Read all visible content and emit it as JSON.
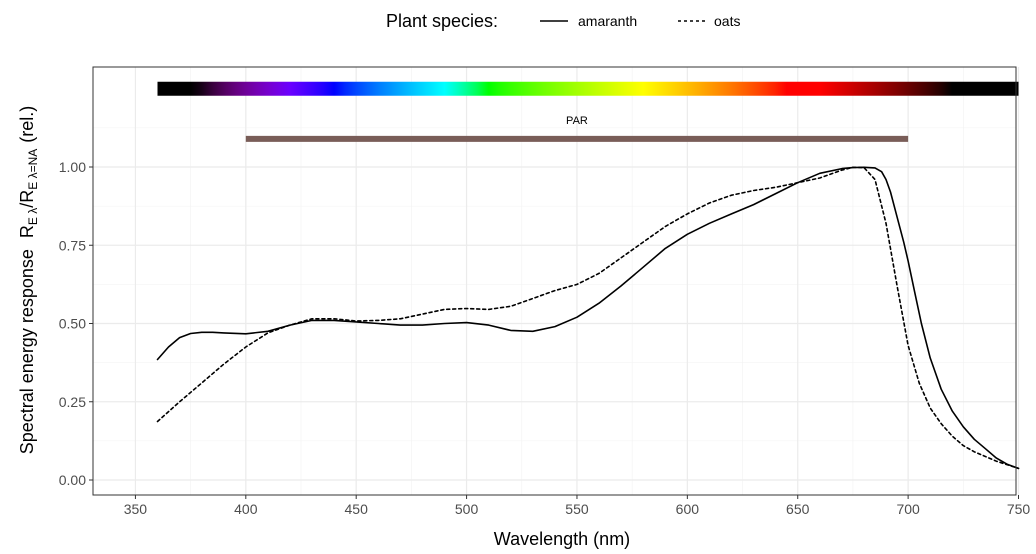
{
  "chart_data": {
    "type": "line",
    "xlabel": "Wavelength (nm)",
    "ylabel_prefix": "Spectral energy response",
    "ylabel_symbol": "R",
    "ylabel_sub1": "E λ",
    "ylabel_slash": "/",
    "ylabel_sub2": "E λ=NA",
    "ylabel_suffix": "(rel.)",
    "xlim": [
      360,
      750
    ],
    "ylim": [
      0,
      1.25
    ],
    "x_ticks": [
      350,
      400,
      450,
      500,
      550,
      600,
      650,
      700,
      750
    ],
    "y_ticks": [
      0,
      0.25,
      0.5,
      0.75,
      1.0
    ],
    "y_tick_labels": [
      "0.00",
      "0.25",
      "0.50",
      "0.75",
      "1.00"
    ],
    "grid": true,
    "legend": {
      "position": "top",
      "title": "Plant species:",
      "entries": [
        {
          "name": "amaranth",
          "linetype": "solid"
        },
        {
          "name": "oats",
          "linetype": "dashed"
        }
      ]
    },
    "annotations": {
      "spectrum_bar": {
        "from": 360,
        "to": 750,
        "y": 1.25
      },
      "par_bar": {
        "label": "PAR",
        "from": 400,
        "to": 700,
        "y": 1.09,
        "color": "#795d58"
      }
    },
    "series": [
      {
        "name": "amaranth",
        "linetype": "solid",
        "x": [
          360,
          365,
          370,
          375,
          380,
          385,
          390,
          400,
          410,
          420,
          430,
          440,
          450,
          460,
          470,
          480,
          490,
          500,
          510,
          520,
          530,
          540,
          550,
          560,
          570,
          580,
          590,
          600,
          610,
          620,
          630,
          640,
          650,
          660,
          670,
          675,
          680,
          685,
          688,
          690,
          692,
          695,
          698,
          700,
          703,
          706,
          710,
          715,
          720,
          725,
          730,
          735,
          740,
          745,
          750
        ],
        "y": [
          0.385,
          0.425,
          0.455,
          0.468,
          0.472,
          0.472,
          0.47,
          0.467,
          0.475,
          0.495,
          0.51,
          0.51,
          0.505,
          0.5,
          0.495,
          0.495,
          0.5,
          0.503,
          0.495,
          0.478,
          0.475,
          0.49,
          0.52,
          0.565,
          0.62,
          0.68,
          0.74,
          0.785,
          0.82,
          0.85,
          0.88,
          0.915,
          0.95,
          0.98,
          0.995,
          0.998,
          0.999,
          0.997,
          0.985,
          0.96,
          0.92,
          0.84,
          0.76,
          0.7,
          0.6,
          0.5,
          0.39,
          0.29,
          0.22,
          0.17,
          0.13,
          0.1,
          0.07,
          0.05,
          0.037
        ]
      },
      {
        "name": "oats",
        "linetype": "dashed",
        "x": [
          360,
          370,
          380,
          390,
          400,
          410,
          420,
          430,
          440,
          450,
          460,
          470,
          480,
          490,
          500,
          510,
          520,
          530,
          540,
          550,
          560,
          570,
          580,
          590,
          600,
          610,
          620,
          630,
          640,
          650,
          660,
          670,
          675,
          680,
          685,
          690,
          695,
          700,
          705,
          710,
          715,
          720,
          725,
          730,
          740,
          750
        ],
        "y": [
          0.187,
          0.25,
          0.31,
          0.37,
          0.425,
          0.47,
          0.495,
          0.515,
          0.515,
          0.508,
          0.51,
          0.515,
          0.53,
          0.545,
          0.548,
          0.545,
          0.555,
          0.58,
          0.605,
          0.625,
          0.66,
          0.71,
          0.76,
          0.81,
          0.85,
          0.885,
          0.91,
          0.925,
          0.935,
          0.95,
          0.965,
          0.99,
          0.999,
          0.998,
          0.96,
          0.82,
          0.62,
          0.43,
          0.31,
          0.23,
          0.18,
          0.14,
          0.11,
          0.09,
          0.06,
          0.037
        ]
      }
    ]
  }
}
